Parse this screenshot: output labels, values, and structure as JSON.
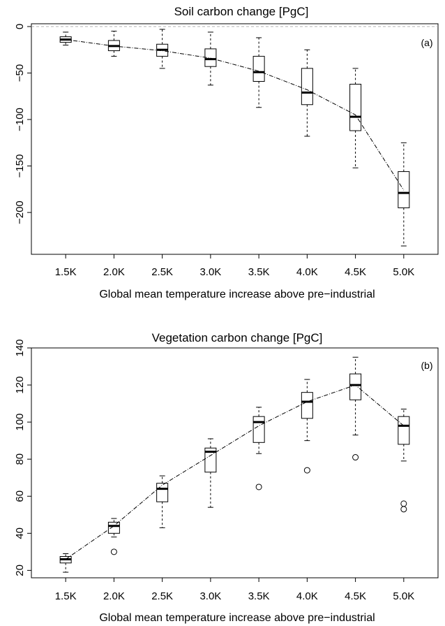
{
  "chart_data": [
    {
      "type": "boxplot",
      "title": "Soil carbon change [PgC]",
      "xlabel": "Global mean temperature increase above pre−industrial",
      "ylabel": "",
      "panel_label": "(a)",
      "categories": [
        "1.5K",
        "2.0K",
        "2.5K",
        "3.0K",
        "3.5K",
        "4.0K",
        "4.5K",
        "5.0K"
      ],
      "ylim": [
        -245,
        3
      ],
      "yticks": [
        0,
        -50,
        -100,
        -150,
        -200
      ],
      "ytick_labels": [
        "0",
        "−50",
        "−100",
        "−150",
        "−200"
      ],
      "reference_line": 0,
      "boxes": [
        {
          "min": -20,
          "q1": -17,
          "median": -14,
          "q3": -11,
          "max": -6,
          "outliers": []
        },
        {
          "min": -32,
          "q1": -26,
          "median": -21,
          "q3": -15,
          "max": -5,
          "outliers": []
        },
        {
          "min": -45,
          "q1": -32,
          "median": -25,
          "q3": -19,
          "max": -3,
          "outliers": []
        },
        {
          "min": -63,
          "q1": -43,
          "median": -35,
          "q3": -24,
          "max": -6,
          "outliers": []
        },
        {
          "min": -87,
          "q1": -59,
          "median": -49,
          "q3": -32,
          "max": -12,
          "outliers": []
        },
        {
          "min": -118,
          "q1": -84,
          "median": -71,
          "q3": -45,
          "max": -25,
          "outliers": []
        },
        {
          "min": -152,
          "q1": -112,
          "median": -97,
          "q3": -62,
          "max": -45,
          "outliers": []
        },
        {
          "min": -236,
          "q1": -195,
          "median": -179,
          "q3": -156,
          "max": -125,
          "outliers": []
        }
      ],
      "mean_line": [
        -14,
        -21,
        -26,
        -34,
        -48,
        -68,
        -95,
        -176
      ]
    },
    {
      "type": "boxplot",
      "title": "Vegetation carbon change [PgC]",
      "xlabel": "Global mean temperature increase above pre−industrial",
      "ylabel": "",
      "panel_label": "(b)",
      "categories": [
        "1.5K",
        "2.0K",
        "2.5K",
        "3.0K",
        "3.5K",
        "4.0K",
        "4.5K",
        "5.0K"
      ],
      "ylim": [
        16,
        140
      ],
      "yticks": [
        20,
        40,
        60,
        80,
        100,
        120,
        140
      ],
      "ytick_labels": [
        "20",
        "40",
        "60",
        "80",
        "100",
        "120",
        "140"
      ],
      "boxes": [
        {
          "min": 19,
          "q1": 24,
          "median": 26,
          "q3": 27.5,
          "max": 29,
          "outliers": []
        },
        {
          "min": 38,
          "q1": 40,
          "median": 44,
          "q3": 46,
          "max": 48,
          "outliers": [
            30
          ]
        },
        {
          "min": 43,
          "q1": 57,
          "median": 64,
          "q3": 67,
          "max": 71,
          "outliers": []
        },
        {
          "min": 54,
          "q1": 73,
          "median": 84,
          "q3": 86,
          "max": 91,
          "outliers": []
        },
        {
          "min": 83,
          "q1": 89,
          "median": 100,
          "q3": 103,
          "max": 108,
          "outliers": [
            65
          ]
        },
        {
          "min": 90,
          "q1": 102,
          "median": 111,
          "q3": 116,
          "max": 123,
          "outliers": [
            74
          ]
        },
        {
          "min": 93,
          "q1": 112,
          "median": 120,
          "q3": 126,
          "max": 135,
          "outliers": [
            81
          ]
        },
        {
          "min": 79,
          "q1": 88,
          "median": 98,
          "q3": 103,
          "max": 107,
          "outliers": [
            56,
            53
          ]
        }
      ],
      "mean_line": [
        26,
        44,
        66,
        82,
        98,
        111,
        120,
        98
      ]
    }
  ]
}
